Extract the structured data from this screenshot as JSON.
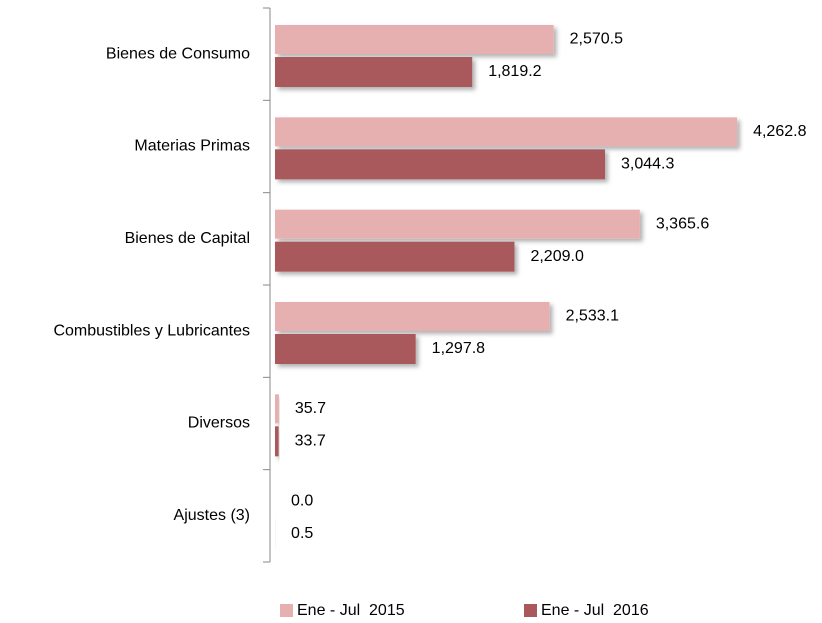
{
  "chart_data": {
    "type": "bar",
    "orientation": "horizontal",
    "categories": [
      "Bienes de Consumo",
      "Materias Primas",
      "Bienes de Capital",
      "Combustibles y Lubricantes",
      "Diversos",
      "Ajustes (3)"
    ],
    "series": [
      {
        "name": "Ene - Jul  2015",
        "color": "#e6b0b0",
        "label_color": "#e0a0a0",
        "values": [
          2570.5,
          4262.8,
          3365.6,
          2533.1,
          35.7,
          0
        ],
        "value_labels": [
          "2,570.5",
          "4,262.8",
          "3,365.6",
          "2,533.1",
          "35.7",
          "0.0"
        ]
      },
      {
        "name": "Ene - Jul  2016",
        "color": "#a9585c",
        "label_color": "#8a2a2e",
        "values": [
          1819.2,
          3044.3,
          2209.0,
          1297.8,
          33.7,
          0.5
        ],
        "value_labels": [
          "1,819.2",
          "3,044.3",
          "2,209.0",
          "1,297.8",
          "33.7",
          "0.5"
        ]
      }
    ],
    "xlim": [
      0,
      5000
    ]
  }
}
